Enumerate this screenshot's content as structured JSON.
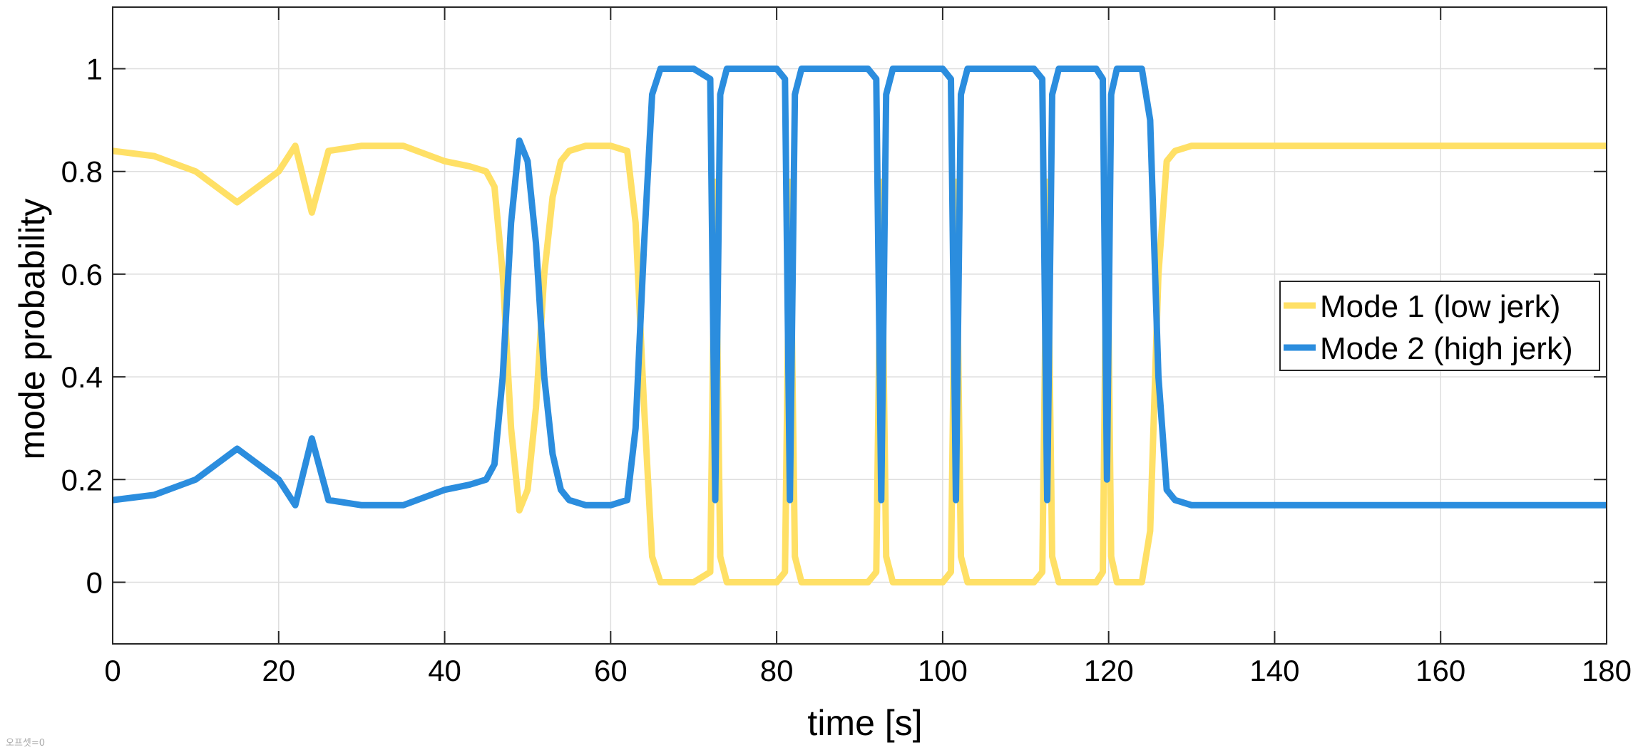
{
  "chart_data": {
    "type": "line",
    "title": "",
    "xlabel": "time [s]",
    "ylabel": "mode probability",
    "xlim": [
      0,
      180
    ],
    "ylim": [
      -0.12,
      1.12
    ],
    "xticks": [
      0,
      20,
      40,
      60,
      80,
      100,
      120,
      140,
      160,
      180
    ],
    "yticks": [
      0,
      0.2,
      0.4,
      0.6,
      0.8,
      1
    ],
    "ytick_labels": [
      "0",
      "0.2",
      "0.4",
      "0.6",
      "0.8",
      "1"
    ],
    "grid": true,
    "legend_position": "center-right",
    "series": [
      {
        "name": "Mode 1 (low jerk)",
        "color": "#FFE066",
        "x": [
          0,
          5,
          10,
          15,
          20,
          22,
          24,
          26,
          30,
          35,
          40,
          43,
          45,
          46,
          47,
          48,
          49,
          50,
          51,
          52,
          53,
          54,
          55,
          57,
          60,
          62,
          63,
          64,
          65,
          66,
          70,
          72,
          72.6,
          73.2,
          74,
          80,
          81,
          81.6,
          82.2,
          83,
          91,
          92,
          92.6,
          93.2,
          94,
          100,
          101,
          101.6,
          102.2,
          103,
          111,
          112,
          112.6,
          113.2,
          114,
          118.5,
          119.3,
          119.8,
          120.3,
          121,
          124,
          125,
          126,
          127,
          128,
          130,
          140,
          150,
          160,
          170,
          180
        ],
        "y": [
          0.84,
          0.83,
          0.8,
          0.74,
          0.8,
          0.85,
          0.72,
          0.84,
          0.85,
          0.85,
          0.82,
          0.81,
          0.8,
          0.77,
          0.6,
          0.3,
          0.14,
          0.18,
          0.34,
          0.6,
          0.75,
          0.82,
          0.84,
          0.85,
          0.85,
          0.84,
          0.7,
          0.35,
          0.05,
          0.0,
          0.0,
          0.02,
          0.78,
          0.05,
          0.0,
          0.0,
          0.02,
          0.78,
          0.05,
          0.0,
          0.0,
          0.02,
          0.78,
          0.05,
          0.0,
          0.0,
          0.02,
          0.78,
          0.05,
          0.0,
          0.0,
          0.02,
          0.78,
          0.05,
          0.0,
          0.0,
          0.02,
          0.78,
          0.05,
          0.0,
          0.0,
          0.1,
          0.6,
          0.82,
          0.84,
          0.85,
          0.85,
          0.85,
          0.85,
          0.85,
          0.85
        ]
      },
      {
        "name": "Mode 2 (high jerk)",
        "color": "#2B8DDE",
        "x": [
          0,
          5,
          10,
          15,
          20,
          22,
          24,
          26,
          30,
          35,
          40,
          43,
          45,
          46,
          47,
          48,
          49,
          50,
          51,
          52,
          53,
          54,
          55,
          57,
          60,
          62,
          63,
          64,
          65,
          66,
          70,
          72,
          72.6,
          73.2,
          74,
          80,
          81,
          81.6,
          82.2,
          83,
          91,
          92,
          92.6,
          93.2,
          94,
          100,
          101,
          101.6,
          102.2,
          103,
          111,
          112,
          112.6,
          113.2,
          114,
          118.5,
          119.3,
          119.8,
          120.3,
          121,
          124,
          125,
          126,
          127,
          128,
          130,
          140,
          150,
          160,
          170,
          180
        ],
        "y": [
          0.16,
          0.17,
          0.2,
          0.26,
          0.2,
          0.15,
          0.28,
          0.16,
          0.15,
          0.15,
          0.18,
          0.19,
          0.2,
          0.23,
          0.4,
          0.7,
          0.86,
          0.82,
          0.66,
          0.4,
          0.25,
          0.18,
          0.16,
          0.15,
          0.15,
          0.16,
          0.3,
          0.65,
          0.95,
          1.0,
          1.0,
          0.98,
          0.16,
          0.95,
          1.0,
          1.0,
          0.98,
          0.16,
          0.95,
          1.0,
          1.0,
          0.98,
          0.16,
          0.95,
          1.0,
          1.0,
          0.98,
          0.16,
          0.95,
          1.0,
          1.0,
          0.98,
          0.16,
          0.95,
          1.0,
          1.0,
          0.98,
          0.2,
          0.95,
          1.0,
          1.0,
          0.9,
          0.4,
          0.18,
          0.16,
          0.15,
          0.15,
          0.15,
          0.15,
          0.15,
          0.15
        ]
      }
    ]
  },
  "corner_note": "오프셋=0"
}
